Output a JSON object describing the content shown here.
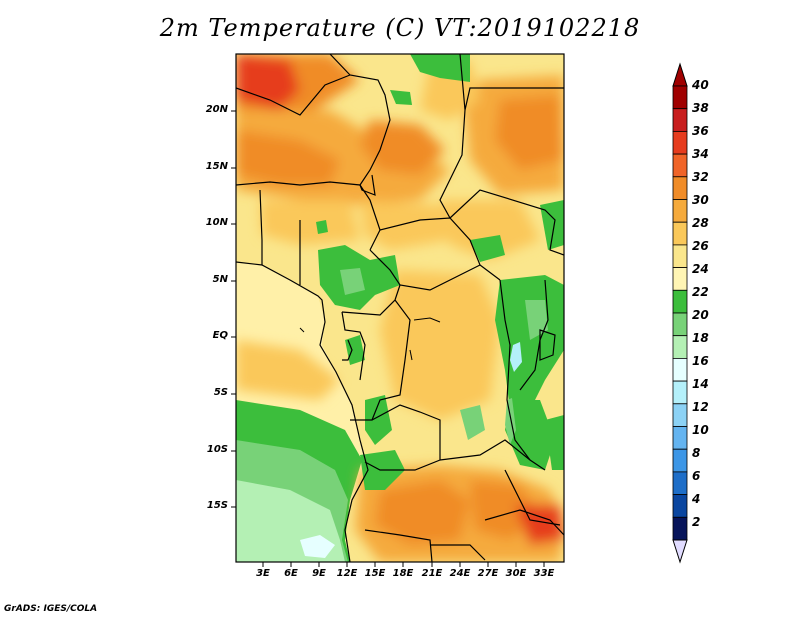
{
  "title": "2m Temperature (C) VT:2019102218",
  "credit": "GrADS: IGES/COLA",
  "map": {
    "lat_labels": [
      "20N",
      "15N",
      "10N",
      "5N",
      "EQ",
      "5S",
      "10S",
      "15S"
    ],
    "lon_labels": [
      "3E",
      "6E",
      "9E",
      "12E",
      "15E",
      "18E",
      "21E",
      "24E",
      "27E",
      "30E",
      "33E"
    ]
  },
  "colorbar": {
    "labels": [
      "40",
      "38",
      "36",
      "34",
      "32",
      "30",
      "28",
      "26",
      "24",
      "22",
      "20",
      "18",
      "16",
      "14",
      "12",
      "10",
      "8",
      "6",
      "4",
      "2"
    ],
    "colors": [
      "#a00000",
      "#c81e1e",
      "#e63c1e",
      "#f06428",
      "#f08c28",
      "#f5aa3c",
      "#fac85a",
      "#fae68c",
      "#fff5b4",
      "#3cbe3c",
      "#78d278",
      "#b4f0b4",
      "#e6ffff",
      "#b4f0fa",
      "#8cd2f5",
      "#64b4f0",
      "#3c96e6",
      "#1e6ec8",
      "#0a46a0",
      "#06145a"
    ],
    "top_arrow_color": "#a00000",
    "bottom_arrow_color": "#e1dcff"
  }
}
